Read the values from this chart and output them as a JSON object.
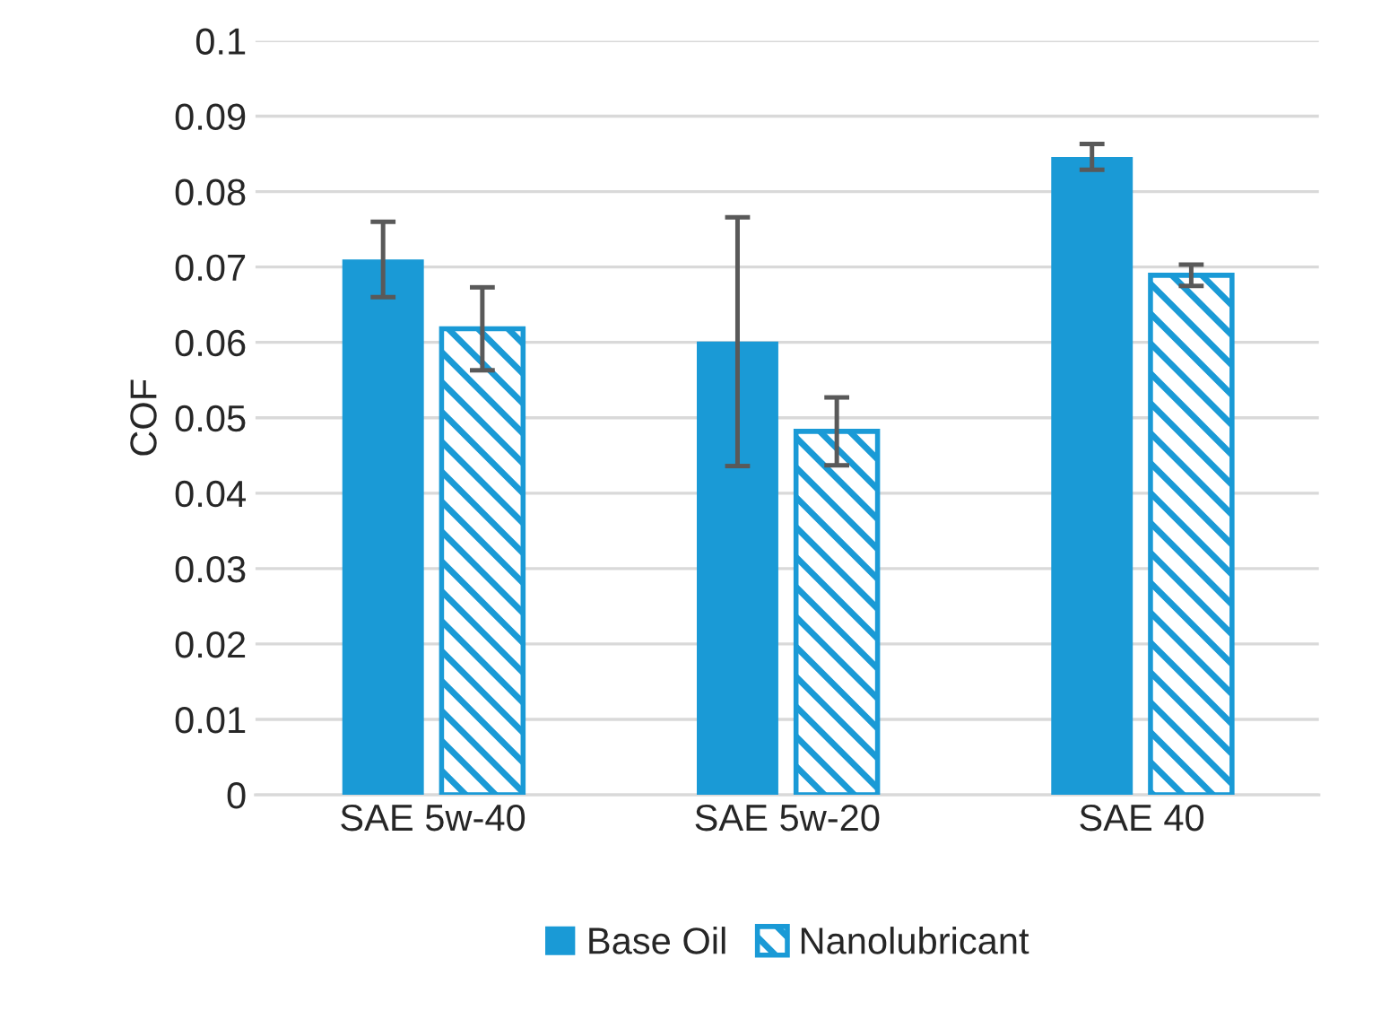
{
  "chart_data": {
    "type": "bar",
    "ylabel": "COF",
    "categories": [
      "SAE 5w-40",
      "SAE 5w-20",
      "SAE 40"
    ],
    "series": [
      {
        "name": "Base Oil",
        "color": "#1a9ad6",
        "values": [
          0.071,
          0.0601,
          0.0846
        ],
        "errors": [
          0.005,
          0.0165,
          0.0017
        ]
      },
      {
        "name": "Nanolubricant",
        "color": "#1a9ad6",
        "values": [
          0.0618,
          0.0482,
          0.0689
        ],
        "errors": [
          0.0055,
          0.0045,
          0.0014
        ]
      }
    ],
    "ylim": [
      0,
      0.1
    ],
    "yticks": [
      0,
      0.01,
      0.02,
      0.03,
      0.04,
      0.05,
      0.06,
      0.07,
      0.08,
      0.09,
      0.1
    ],
    "grid": "y",
    "legend": "bottom"
  }
}
